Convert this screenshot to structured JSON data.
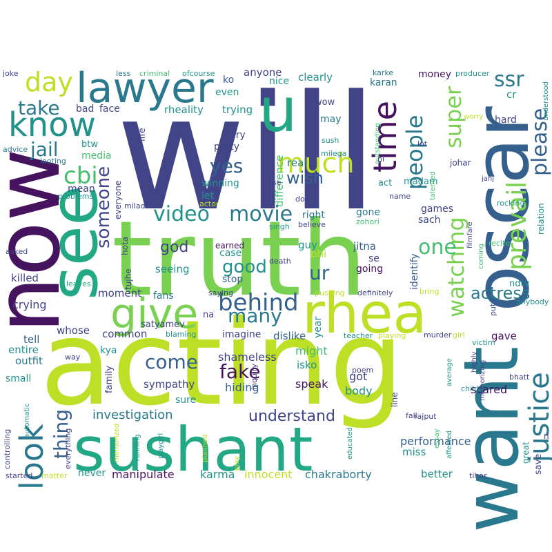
{
  "word_cloud": {
    "background": "#ffffff",
    "palette": {
      "dark_purple": "#46135f",
      "indigo": "#414487",
      "blue": "#355f8d",
      "steel": "#2a788e",
      "teal": "#21918c",
      "sea": "#22a884",
      "green": "#44bf70",
      "lime": "#7ad151",
      "yellow_green": "#bddf26"
    },
    "words": [
      {
        "text": "will",
        "color": "indigo"
      },
      {
        "text": "acting",
        "color": "yellow_green"
      },
      {
        "text": "truth",
        "color": "lime"
      },
      {
        "text": "oscar",
        "color": "blue"
      },
      {
        "text": "want",
        "color": "steel"
      },
      {
        "text": "now",
        "color": "dark_purple"
      },
      {
        "text": "sushant",
        "color": "sea"
      },
      {
        "text": "see",
        "color": "sea"
      },
      {
        "text": "rhea",
        "color": "yellow_green"
      },
      {
        "text": "lawyer",
        "color": "steel"
      },
      {
        "text": "know",
        "color": "teal"
      },
      {
        "text": "u",
        "color": "sea"
      },
      {
        "text": "give",
        "color": "lime"
      },
      {
        "text": "look",
        "color": "steel"
      },
      {
        "text": "justice",
        "color": "steel"
      },
      {
        "text": "prevail",
        "color": "lime"
      },
      {
        "text": "much",
        "color": "yellow_green"
      },
      {
        "text": "time",
        "color": "dark_purple"
      },
      {
        "text": "behind",
        "color": "blue"
      },
      {
        "text": "day",
        "color": "yellow_green"
      },
      {
        "text": "cbi",
        "color": "green"
      },
      {
        "text": "ssr",
        "color": "steel"
      },
      {
        "text": "take",
        "color": "steel"
      },
      {
        "text": "jail",
        "color": "steel"
      },
      {
        "text": "people",
        "color": "steel"
      },
      {
        "text": "super",
        "color": "lime"
      },
      {
        "text": "please",
        "color": "blue"
      },
      {
        "text": "watching",
        "color": "lime"
      },
      {
        "text": "yes",
        "color": "blue"
      },
      {
        "text": "video",
        "color": "teal"
      },
      {
        "text": "movie",
        "color": "steel"
      },
      {
        "text": "wish",
        "color": "blue"
      },
      {
        "text": "someone",
        "color": "indigo"
      },
      {
        "text": "good",
        "color": "teal"
      },
      {
        "text": "ur",
        "color": "blue"
      },
      {
        "text": "god",
        "color": "indigo"
      },
      {
        "text": "many",
        "color": "steel"
      },
      {
        "text": "come",
        "color": "blue"
      },
      {
        "text": "fake",
        "color": "dark_purple"
      },
      {
        "text": "one",
        "color": "green"
      },
      {
        "text": "thing",
        "color": "blue"
      },
      {
        "text": "understand",
        "color": "indigo"
      },
      {
        "text": "actress",
        "color": "steel"
      },
      {
        "text": "investigation",
        "color": "steel"
      },
      {
        "text": "chakraborty",
        "color": "steel"
      },
      {
        "text": "performance",
        "color": "blue"
      },
      {
        "text": "manipulate",
        "color": "dark_purple"
      },
      {
        "text": "innocent",
        "color": "yellow_green"
      },
      {
        "text": "karma",
        "color": "teal"
      },
      {
        "text": "never",
        "color": "teal"
      },
      {
        "text": "miss",
        "color": "teal"
      },
      {
        "text": "better",
        "color": "teal"
      },
      {
        "text": "scared",
        "color": "dark_purple"
      },
      {
        "text": "shameless",
        "color": "indigo"
      },
      {
        "text": "hiding",
        "color": "blue"
      },
      {
        "text": "sympathy",
        "color": "indigo"
      },
      {
        "text": "speak",
        "color": "dark_purple"
      },
      {
        "text": "body",
        "color": "teal"
      },
      {
        "text": "got",
        "color": "indigo"
      },
      {
        "text": "sure",
        "color": "teal"
      },
      {
        "text": "outfit",
        "color": "steel"
      },
      {
        "text": "entire",
        "color": "teal"
      },
      {
        "text": "small",
        "color": "teal"
      },
      {
        "text": "tell",
        "color": "blue"
      },
      {
        "text": "crying",
        "color": "indigo"
      },
      {
        "text": "killed",
        "color": "indigo"
      },
      {
        "text": "whose",
        "color": "indigo"
      },
      {
        "text": "common",
        "color": "indigo"
      },
      {
        "text": "satyamev",
        "color": "indigo"
      },
      {
        "text": "moment",
        "color": "indigo"
      },
      {
        "text": "fans",
        "color": "steel"
      },
      {
        "text": "kya",
        "color": "teal"
      },
      {
        "text": "family",
        "color": "indigo"
      },
      {
        "text": "seeing",
        "color": "teal"
      },
      {
        "text": "case",
        "color": "teal"
      },
      {
        "text": "stop",
        "color": "blue"
      },
      {
        "text": "earned",
        "color": "dark_purple"
      },
      {
        "text": "na",
        "color": "indigo"
      },
      {
        "text": "imagine",
        "color": "indigo"
      },
      {
        "text": "dislike",
        "color": "blue"
      },
      {
        "text": "might",
        "color": "green"
      },
      {
        "text": "isko",
        "color": "teal"
      },
      {
        "text": "year",
        "color": "teal"
      },
      {
        "text": "gave",
        "color": "dark_purple"
      },
      {
        "text": "bhi",
        "color": "yellow_green"
      },
      {
        "text": "se",
        "color": "indigo"
      },
      {
        "text": "going",
        "color": "dark_purple"
      },
      {
        "text": "jitna",
        "color": "blue"
      },
      {
        "text": "guy",
        "color": "teal"
      },
      {
        "text": "right",
        "color": "steel"
      },
      {
        "text": "gone",
        "color": "steel"
      },
      {
        "text": "sach",
        "color": "indigo"
      },
      {
        "text": "games",
        "color": "indigo"
      },
      {
        "text": "identify",
        "color": "blue"
      },
      {
        "text": "ndtv",
        "color": "teal"
      },
      {
        "text": "relation",
        "color": "teal"
      },
      {
        "text": "rocking",
        "color": "teal"
      },
      {
        "text": "madam",
        "color": "teal"
      },
      {
        "text": "act",
        "color": "teal"
      },
      {
        "text": "real",
        "color": "steel"
      },
      {
        "text": "difference",
        "color": "green"
      },
      {
        "text": "may",
        "color": "steel"
      },
      {
        "text": "wow",
        "color": "indigo"
      },
      {
        "text": "sush",
        "color": "teal"
      },
      {
        "text": "milega",
        "color": "teal"
      },
      {
        "text": "hard",
        "color": "indigo"
      },
      {
        "text": "cr",
        "color": "teal"
      },
      {
        "text": "money",
        "color": "dark_purple"
      },
      {
        "text": "karan",
        "color": "steel"
      },
      {
        "text": "clearly",
        "color": "teal"
      },
      {
        "text": "anyone",
        "color": "indigo"
      },
      {
        "text": "nice",
        "color": "teal"
      },
      {
        "text": "ko",
        "color": "blue"
      },
      {
        "text": "even",
        "color": "teal"
      },
      {
        "text": "trying",
        "color": "teal"
      },
      {
        "text": "rheality",
        "color": "teal"
      },
      {
        "text": "cry",
        "color": "indigo"
      },
      {
        "text": "party",
        "color": "indigo"
      },
      {
        "text": "winning",
        "color": "teal"
      },
      {
        "text": "let",
        "color": "teal"
      },
      {
        "text": "face",
        "color": "indigo"
      },
      {
        "text": "bad",
        "color": "indigo"
      },
      {
        "text": "life",
        "color": "indigo"
      },
      {
        "text": "btw",
        "color": "teal"
      },
      {
        "text": "media",
        "color": "green"
      },
      {
        "text": "mean",
        "color": "indigo"
      },
      {
        "text": "everyone",
        "color": "indigo"
      },
      {
        "text": "hota",
        "color": "indigo"
      },
      {
        "text": "tujhe",
        "color": "indigo"
      },
      {
        "text": "less",
        "color": "steel"
      },
      {
        "text": "criminal",
        "color": "green"
      },
      {
        "text": "ofcourse",
        "color": "teal"
      },
      {
        "text": "joke",
        "color": "indigo"
      },
      {
        "text": "advice",
        "color": "steel"
      },
      {
        "text": "looting",
        "color": "steel"
      },
      {
        "text": "problems",
        "color": "teal"
      },
      {
        "text": "asked",
        "color": "indigo"
      },
      {
        "text": "leaves",
        "color": "sea"
      },
      {
        "text": "karke",
        "color": "steel"
      },
      {
        "text": "producer",
        "color": "teal"
      },
      {
        "text": "understood",
        "color": "teal"
      },
      {
        "text": "worry",
        "color": "yellow_green"
      },
      {
        "text": "outstanding",
        "color": "green"
      },
      {
        "text": "lot",
        "color": "indigo"
      },
      {
        "text": "johar",
        "color": "indigo"
      },
      {
        "text": "ni",
        "color": "indigo"
      },
      {
        "text": "janj",
        "color": "indigo"
      },
      {
        "text": "name",
        "color": "indigo"
      },
      {
        "text": "use",
        "color": "indigo"
      },
      {
        "text": "talented",
        "color": "green"
      },
      {
        "text": "done",
        "color": "indigo"
      },
      {
        "text": "zohori",
        "color": "green"
      },
      {
        "text": "believe",
        "color": "indigo"
      },
      {
        "text": "singh",
        "color": "teal"
      },
      {
        "text": "milado",
        "color": "indigo"
      },
      {
        "text": "actor",
        "color": "yellow_green"
      },
      {
        "text": "filmfare",
        "color": "indigo"
      },
      {
        "text": "recite",
        "color": "green"
      },
      {
        "text": "coming",
        "color": "green"
      },
      {
        "text": "death",
        "color": "indigo"
      },
      {
        "text": "saying",
        "color": "indigo"
      },
      {
        "text": "pushing",
        "color": "yellow_green"
      },
      {
        "text": "definitely",
        "color": "indigo"
      },
      {
        "text": "bring",
        "color": "yellow_green"
      },
      {
        "text": "anybody",
        "color": "teal"
      },
      {
        "text": "put",
        "color": "indigo"
      },
      {
        "text": "murder",
        "color": "indigo"
      },
      {
        "text": "girl",
        "color": "yellow_green"
      },
      {
        "text": "victim",
        "color": "teal"
      },
      {
        "text": "teacher",
        "color": "teal"
      },
      {
        "text": "playing",
        "color": "yellow_green"
      },
      {
        "text": "blaming",
        "color": "teal"
      },
      {
        "text": "way",
        "color": "indigo"
      },
      {
        "text": "poem",
        "color": "indigo"
      },
      {
        "text": "inquiry",
        "color": "indigo"
      },
      {
        "text": "bhatt",
        "color": "indigo"
      },
      {
        "text": "average",
        "color": "teal"
      },
      {
        "text": "highly",
        "color": "indigo"
      },
      {
        "text": "memorizing",
        "color": "indigo"
      },
      {
        "text": "child",
        "color": "teal"
      },
      {
        "text": "line",
        "color": "indigo"
      },
      {
        "text": "fall",
        "color": "indigo"
      },
      {
        "text": "rajput",
        "color": "indigo"
      },
      {
        "text": "essay",
        "color": "green"
      },
      {
        "text": "affected",
        "color": "teal"
      },
      {
        "text": "great",
        "color": "teal"
      },
      {
        "text": "save",
        "color": "indigo"
      },
      {
        "text": "n",
        "color": "indigo"
      },
      {
        "text": "educated",
        "color": "teal"
      },
      {
        "text": "tihar",
        "color": "indigo"
      },
      {
        "text": "automatic",
        "color": "teal"
      },
      {
        "text": "controlling",
        "color": "indigo"
      },
      {
        "text": "everything",
        "color": "indigo"
      },
      {
        "text": "memorized",
        "color": "yellow_green"
      },
      {
        "text": "running",
        "color": "teal"
      },
      {
        "text": "playgirl",
        "color": "teal"
      },
      {
        "text": "planned",
        "color": "yellow_green"
      },
      {
        "text": "play",
        "color": "yellow_green"
      },
      {
        "text": "started",
        "color": "indigo"
      },
      {
        "text": "matter",
        "color": "yellow_green"
      }
    ]
  }
}
